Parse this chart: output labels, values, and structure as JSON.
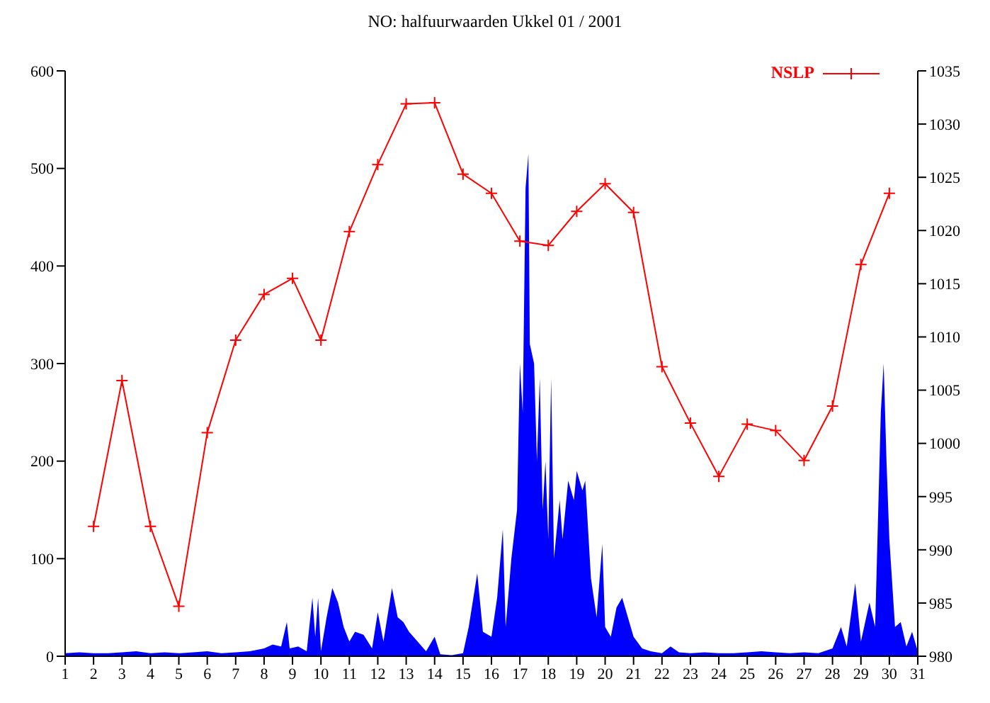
{
  "chart_data": {
    "type": "area",
    "title": "NO: halfuurwaarden Ukkel 01 / 2001",
    "xlim": [
      1,
      31
    ],
    "xticks": [
      1,
      2,
      3,
      4,
      5,
      6,
      7,
      8,
      9,
      10,
      11,
      12,
      13,
      14,
      15,
      16,
      17,
      18,
      19,
      20,
      21,
      22,
      23,
      24,
      25,
      26,
      27,
      28,
      29,
      30,
      31
    ],
    "ylim": [
      0,
      600
    ],
    "yticks": [
      0,
      100,
      200,
      300,
      400,
      500,
      600
    ],
    "y2lim": [
      980,
      1035
    ],
    "y2ticks": [
      980,
      985,
      990,
      995,
      1000,
      1005,
      1010,
      1015,
      1020,
      1025,
      1030,
      1035
    ],
    "grid": false,
    "legend": "top right",
    "series": [
      {
        "color": "#0000ff",
        "x": [
          1,
          1.5,
          2,
          2.5,
          3,
          3.5,
          4,
          4.5,
          5,
          5.5,
          6,
          6.5,
          7,
          7.5,
          8,
          8.3,
          8.6,
          8.8,
          8.9,
          9.2,
          9.5,
          9.7,
          9.8,
          9.9,
          10,
          10.2,
          10.4,
          10.6,
          10.8,
          11,
          11.2,
          11.5,
          11.8,
          12,
          12.2,
          12.5,
          12.7,
          12.9,
          13.1,
          13.4,
          13.7,
          14,
          14.2,
          14.6,
          15,
          15.2,
          15.5,
          15.7,
          16,
          16.2,
          16.4,
          16.5,
          16.7,
          16.9,
          17,
          17.1,
          17.2,
          17.3,
          17.35,
          17.5,
          17.6,
          17.7,
          17.8,
          17.9,
          18,
          18.1,
          18.2,
          18.4,
          18.5,
          18.7,
          18.9,
          19,
          19.2,
          19.3,
          19.5,
          19.7,
          19.9,
          20,
          20.2,
          20.4,
          20.6,
          20.8,
          21,
          21.3,
          21.6,
          22,
          22.3,
          22.6,
          23,
          23.5,
          24,
          24.5,
          25,
          25.5,
          26,
          26.5,
          27,
          27.5,
          28,
          28.3,
          28.5,
          28.8,
          29,
          29.3,
          29.5,
          29.7,
          29.8,
          29.9,
          30,
          30.2,
          30.4,
          30.6,
          30.8,
          31
        ],
        "values": [
          3,
          4,
          3,
          3,
          4,
          5,
          3,
          4,
          3,
          4,
          5,
          3,
          4,
          5,
          8,
          12,
          10,
          35,
          8,
          10,
          5,
          60,
          20,
          60,
          5,
          40,
          70,
          55,
          30,
          15,
          25,
          22,
          8,
          45,
          15,
          70,
          40,
          35,
          25,
          15,
          5,
          20,
          2,
          1,
          3,
          30,
          85,
          25,
          20,
          60,
          130,
          30,
          100,
          150,
          300,
          250,
          480,
          515,
          320,
          300,
          200,
          285,
          150,
          200,
          120,
          285,
          100,
          160,
          120,
          180,
          160,
          190,
          170,
          180,
          80,
          40,
          115,
          30,
          20,
          50,
          60,
          40,
          20,
          8,
          5,
          3,
          10,
          4,
          3,
          4,
          3,
          3,
          4,
          5,
          4,
          3,
          4,
          3,
          8,
          30,
          10,
          75,
          15,
          55,
          30,
          250,
          300,
          200,
          120,
          30,
          35,
          10,
          25,
          5
        ]
      },
      {
        "type": "line",
        "name": "NSLP",
        "color": "#ff0000",
        "axis": "y2",
        "marker": "cross",
        "x": [
          2,
          3,
          4,
          5,
          6,
          7,
          8,
          9,
          10,
          11,
          12,
          13,
          14,
          15,
          16,
          17,
          18,
          19,
          20,
          21,
          22,
          23,
          24,
          25,
          26,
          27,
          28,
          29,
          30
        ],
        "values": [
          992.2,
          1005.9,
          992.2,
          984.7,
          1001,
          1009.7,
          1014,
          1015.5,
          1009.7,
          1019.9,
          1026.2,
          1031.9,
          1032,
          1025.3,
          1023.5,
          1019,
          1018.6,
          1021.8,
          1024.4,
          1021.7,
          1007.2,
          1001.9,
          996.9,
          1001.8,
          1001.2,
          998.4,
          1003.5,
          1016.8,
          1023.5
        ]
      }
    ]
  }
}
